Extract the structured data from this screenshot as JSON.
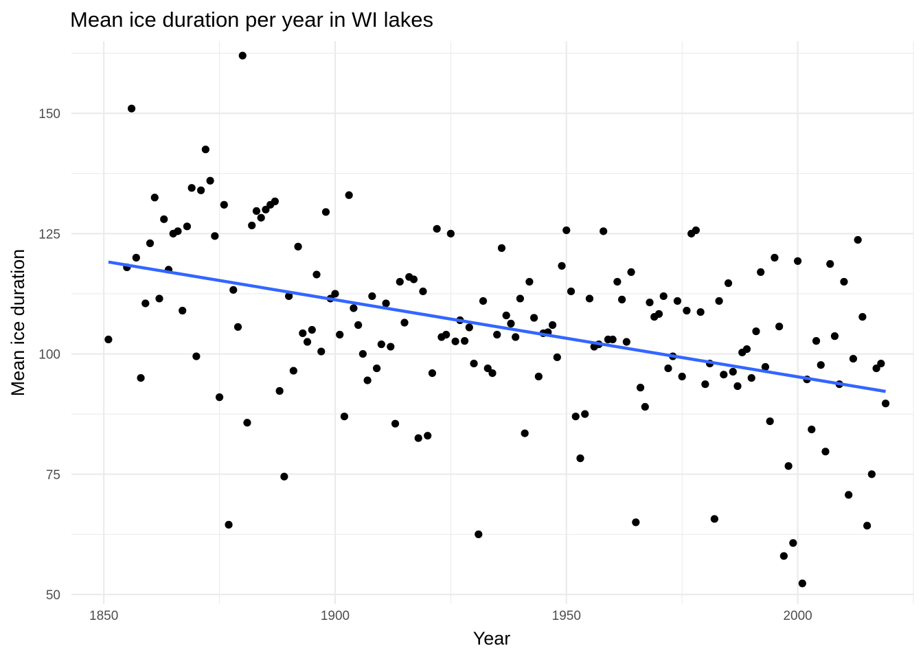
{
  "chart_data": {
    "type": "scatter",
    "title": "Mean ice duration per year in WI lakes",
    "xlabel": "Year",
    "ylabel": "Mean ice duration",
    "xlim": [
      1843,
      2025
    ],
    "ylim": [
      48,
      165
    ],
    "x_ticks": [
      1850,
      1900,
      1950,
      2000
    ],
    "x_tick_labels": [
      "1850",
      "1900",
      "1950",
      "2000"
    ],
    "y_ticks": [
      50,
      75,
      100,
      125,
      150
    ],
    "y_tick_labels": [
      "50",
      "75",
      "100",
      "125",
      "150"
    ],
    "grid": true,
    "legend": "none",
    "point_color": "#000000",
    "trend_color": "#3366FF",
    "trend_line": {
      "x": [
        1851,
        2019
      ],
      "y": [
        119.1,
        92.2
      ]
    },
    "points": [
      [
        1851,
        103.0
      ],
      [
        1855,
        118.0
      ],
      [
        1856,
        151.0
      ],
      [
        1857,
        120.0
      ],
      [
        1858,
        95.0
      ],
      [
        1859,
        110.5
      ],
      [
        1860,
        123.0
      ],
      [
        1861,
        132.5
      ],
      [
        1862,
        111.5
      ],
      [
        1863,
        128.0
      ],
      [
        1864,
        117.5
      ],
      [
        1865,
        125.0
      ],
      [
        1866,
        125.5
      ],
      [
        1867,
        109.0
      ],
      [
        1868,
        126.5
      ],
      [
        1869,
        134.5
      ],
      [
        1870,
        99.5
      ],
      [
        1871,
        134.0
      ],
      [
        1872,
        142.5
      ],
      [
        1873,
        136.0
      ],
      [
        1874,
        124.5
      ],
      [
        1875,
        91.0
      ],
      [
        1876,
        131.0
      ],
      [
        1877,
        64.5
      ],
      [
        1878,
        113.3
      ],
      [
        1879,
        105.6
      ],
      [
        1880,
        162.0
      ],
      [
        1881,
        85.7
      ],
      [
        1882,
        126.7
      ],
      [
        1883,
        129.7
      ],
      [
        1884,
        128.3
      ],
      [
        1885,
        130.0
      ],
      [
        1886,
        131.0
      ],
      [
        1887,
        131.7
      ],
      [
        1888,
        92.3
      ],
      [
        1889,
        74.5
      ],
      [
        1890,
        112.0
      ],
      [
        1891,
        96.5
      ],
      [
        1892,
        122.3
      ],
      [
        1893,
        104.3
      ],
      [
        1894,
        102.5
      ],
      [
        1895,
        105.0
      ],
      [
        1896,
        116.5
      ],
      [
        1897,
        100.5
      ],
      [
        1898,
        129.5
      ],
      [
        1899,
        111.5
      ],
      [
        1900,
        112.5
      ],
      [
        1901,
        104.0
      ],
      [
        1902,
        87.0
      ],
      [
        1903,
        133.0
      ],
      [
        1904,
        109.5
      ],
      [
        1905,
        106.0
      ],
      [
        1906,
        100.0
      ],
      [
        1907,
        94.5
      ],
      [
        1908,
        112.0
      ],
      [
        1909,
        97.0
      ],
      [
        1910,
        102.0
      ],
      [
        1911,
        110.5
      ],
      [
        1912,
        101.5
      ],
      [
        1913,
        85.5
      ],
      [
        1914,
        115.0
      ],
      [
        1915,
        106.5
      ],
      [
        1916,
        116.0
      ],
      [
        1917,
        115.5
      ],
      [
        1918,
        82.5
      ],
      [
        1919,
        113.0
      ],
      [
        1920,
        83.0
      ],
      [
        1921,
        96.0
      ],
      [
        1922,
        126.0
      ],
      [
        1923,
        103.5
      ],
      [
        1924,
        104.0
      ],
      [
        1925,
        125.0
      ],
      [
        1926,
        102.6
      ],
      [
        1927,
        107.0
      ],
      [
        1928,
        102.7
      ],
      [
        1929,
        105.5
      ],
      [
        1930,
        98.0
      ],
      [
        1931,
        62.5
      ],
      [
        1932,
        111.0
      ],
      [
        1933,
        97.0
      ],
      [
        1934,
        96.0
      ],
      [
        1935,
        104.0
      ],
      [
        1936,
        122.0
      ],
      [
        1937,
        108.0
      ],
      [
        1938,
        106.3
      ],
      [
        1939,
        103.5
      ],
      [
        1940,
        111.5
      ],
      [
        1941,
        83.5
      ],
      [
        1942,
        115.0
      ],
      [
        1943,
        107.5
      ],
      [
        1944,
        95.3
      ],
      [
        1945,
        104.3
      ],
      [
        1946,
        104.5
      ],
      [
        1947,
        106.0
      ],
      [
        1948,
        99.3
      ],
      [
        1949,
        118.3
      ],
      [
        1950,
        125.7
      ],
      [
        1951,
        113.0
      ],
      [
        1952,
        87.0
      ],
      [
        1953,
        78.3
      ],
      [
        1954,
        87.5
      ],
      [
        1955,
        111.5
      ],
      [
        1956,
        101.5
      ],
      [
        1957,
        102.0
      ],
      [
        1958,
        125.5
      ],
      [
        1959,
        103.0
      ],
      [
        1960,
        103.0
      ],
      [
        1961,
        115.0
      ],
      [
        1962,
        111.3
      ],
      [
        1963,
        102.5
      ],
      [
        1964,
        117.0
      ],
      [
        1965,
        65.0
      ],
      [
        1966,
        93.0
      ],
      [
        1967,
        89.0
      ],
      [
        1968,
        110.7
      ],
      [
        1969,
        107.7
      ],
      [
        1970,
        108.3
      ],
      [
        1971,
        112.0
      ],
      [
        1972,
        97.0
      ],
      [
        1973,
        99.5
      ],
      [
        1974,
        111.0
      ],
      [
        1975,
        95.3
      ],
      [
        1976,
        109.0
      ],
      [
        1977,
        125.0
      ],
      [
        1978,
        125.7
      ],
      [
        1979,
        108.7
      ],
      [
        1980,
        93.7
      ],
      [
        1981,
        98.0
      ],
      [
        1982,
        65.7
      ],
      [
        1983,
        111.0
      ],
      [
        1984,
        95.7
      ],
      [
        1985,
        114.7
      ],
      [
        1986,
        96.3
      ],
      [
        1987,
        93.3
      ],
      [
        1988,
        100.3
      ],
      [
        1989,
        101.0
      ],
      [
        1990,
        95.0
      ],
      [
        1991,
        104.7
      ],
      [
        1992,
        117.0
      ],
      [
        1993,
        97.3
      ],
      [
        1994,
        86.0
      ],
      [
        1995,
        120.0
      ],
      [
        1996,
        105.7
      ],
      [
        1997,
        58.0
      ],
      [
        1998,
        76.7
      ],
      [
        1999,
        60.7
      ],
      [
        2000,
        119.3
      ],
      [
        2001,
        52.3
      ],
      [
        2002,
        94.7
      ],
      [
        2003,
        84.3
      ],
      [
        2004,
        102.7
      ],
      [
        2005,
        97.7
      ],
      [
        2006,
        79.7
      ],
      [
        2007,
        118.7
      ],
      [
        2008,
        103.7
      ],
      [
        2009,
        93.7
      ],
      [
        2010,
        115.0
      ],
      [
        2011,
        70.7
      ],
      [
        2012,
        99.0
      ],
      [
        2013,
        123.7
      ],
      [
        2014,
        107.7
      ],
      [
        2015,
        64.3
      ],
      [
        2016,
        75.0
      ],
      [
        2017,
        97.0
      ],
      [
        2018,
        98.0
      ],
      [
        2019,
        89.7
      ]
    ]
  }
}
